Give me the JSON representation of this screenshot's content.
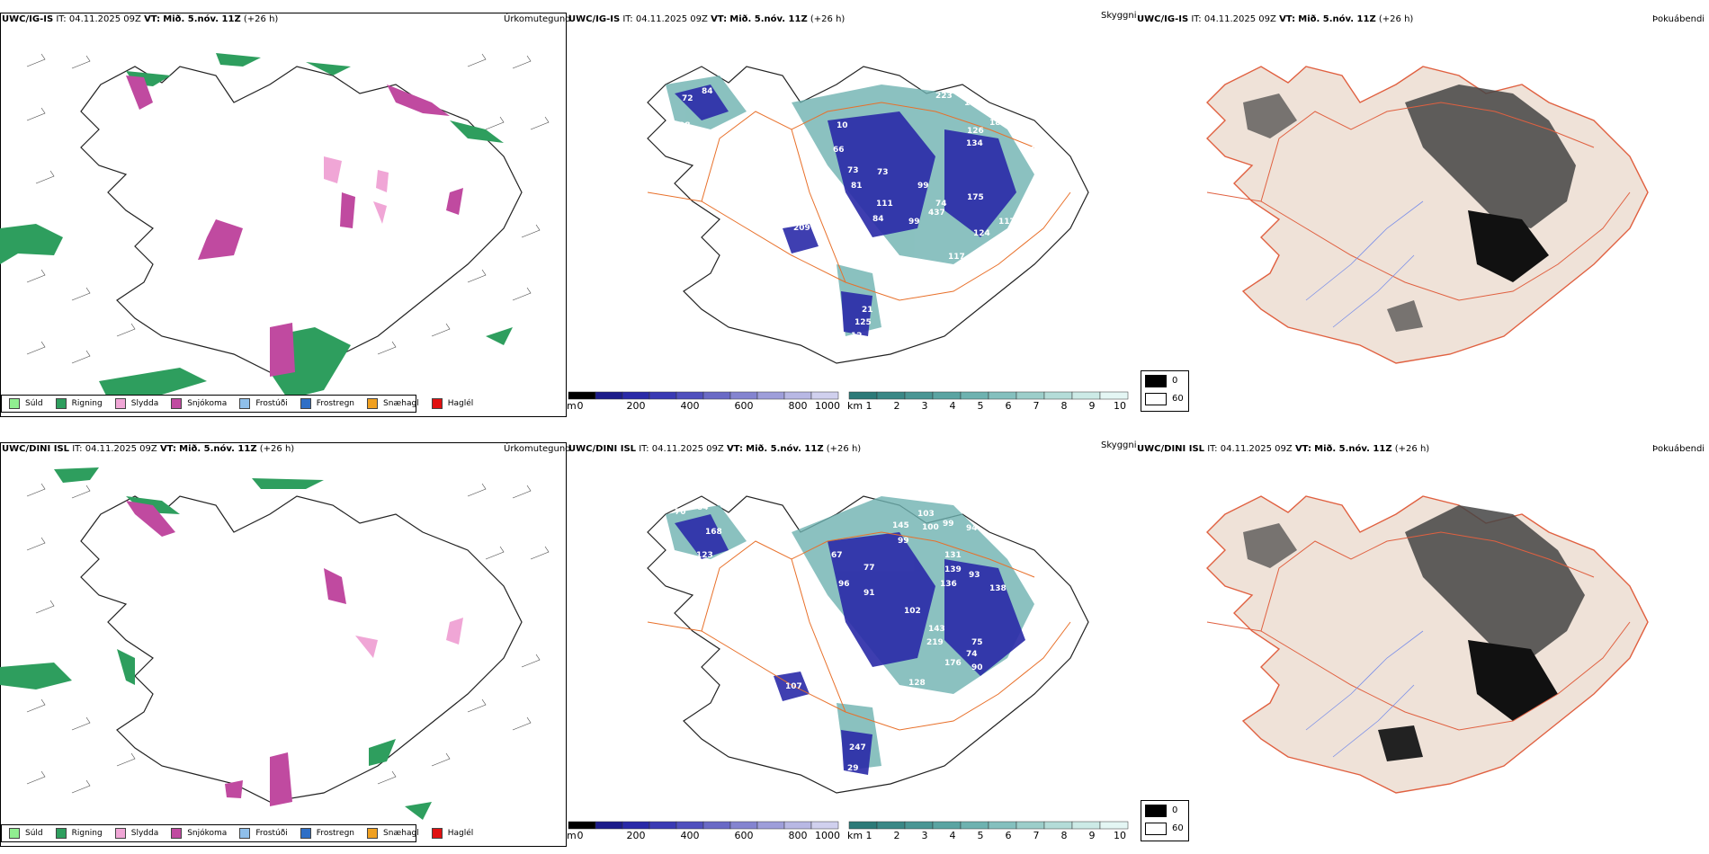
{
  "colors": {
    "coast": "#222222",
    "roads": "#e8702a",
    "rivers": "#7b8fe8",
    "land_vis": "#efe2d8",
    "drizzle": "#90ee90",
    "rain": "#2e9e5e",
    "sleet": "#f0a6d6",
    "snow": "#c04aa0",
    "frost_drizzle": "#8fbfea",
    "frost_rain": "#2f6fc6",
    "snow_hail": "#f0a020",
    "hail": "#e01010"
  },
  "rows": [
    {
      "model": "UWC/IG-IS",
      "run": "04.11.2025 09Z",
      "valid": "Mið. 5.nóv. 11Z",
      "lead": "(+26 h)",
      "cloud_labels": [
        "72",
        "84",
        "98",
        "10",
        "66",
        "73",
        "81",
        "73",
        "223",
        "167",
        "126",
        "134",
        "18",
        "15",
        "99",
        "175",
        "437",
        "117",
        "88",
        "124",
        "117",
        "74",
        "111",
        "84",
        "209",
        "21",
        "125",
        "12",
        "99"
      ]
    },
    {
      "model": "UWC/DINI ISL",
      "run": "04.11.2025 09Z",
      "valid": "Mið. 5.nóv. 11Z",
      "lead": "(+26 h)",
      "cloud_labels": [
        "70",
        "84",
        "168",
        "90",
        "123",
        "85",
        "96",
        "67",
        "77",
        "91",
        "103",
        "100",
        "99",
        "94",
        "145",
        "99",
        "131",
        "139",
        "136",
        "138",
        "93",
        "102",
        "143",
        "219",
        "75",
        "74",
        "176",
        "90",
        "128",
        "80",
        "107",
        "247",
        "29"
      ]
    }
  ],
  "labels": {
    "it": "IT:",
    "vt": "VT:",
    "precip_type": "Úrkomutegund",
    "cloud_ceiling": "Skyggni",
    "fog_index": "Þokuábendi",
    "ceiling_unit": "m",
    "vis_unit": "km"
  },
  "precip_legend": [
    {
      "name": "Súld",
      "color_key": "drizzle"
    },
    {
      "name": "Rigning",
      "color_key": "rain"
    },
    {
      "name": "Slydda",
      "color_key": "sleet"
    },
    {
      "name": "Snjókoma",
      "color_key": "snow"
    },
    {
      "name": "Frostúði",
      "color_key": "frost_drizzle"
    },
    {
      "name": "Frostregn",
      "color_key": "frost_rain"
    },
    {
      "name": "Snæhagl",
      "color_key": "snow_hail"
    },
    {
      "name": "Haglél",
      "color_key": "hail"
    }
  ],
  "ceiling_scale": {
    "ticks": [
      "0",
      "200",
      "400",
      "600",
      "800",
      "1000"
    ],
    "colors": [
      "#000000",
      "#1c1c8a",
      "#2a2aa8",
      "#3a3ab4",
      "#5050be",
      "#6a6ac6",
      "#8484d0",
      "#9e9eda",
      "#b8b8e4",
      "#d0d0ee"
    ]
  },
  "vis_scale": {
    "ticks": [
      "1",
      "2",
      "3",
      "4",
      "5",
      "6",
      "7",
      "8",
      "9",
      "10"
    ],
    "colors": [
      "#2c7a78",
      "#3a8886",
      "#4a9694",
      "#5aa4a2",
      "#6eb2b0",
      "#84c0be",
      "#9cceca",
      "#b4dcd8",
      "#cceae6",
      "#e4f6f4"
    ]
  },
  "fog_legend": [
    {
      "value": "0",
      "color": "#000000"
    },
    {
      "value": "60",
      "color": "#ffffff"
    }
  ]
}
